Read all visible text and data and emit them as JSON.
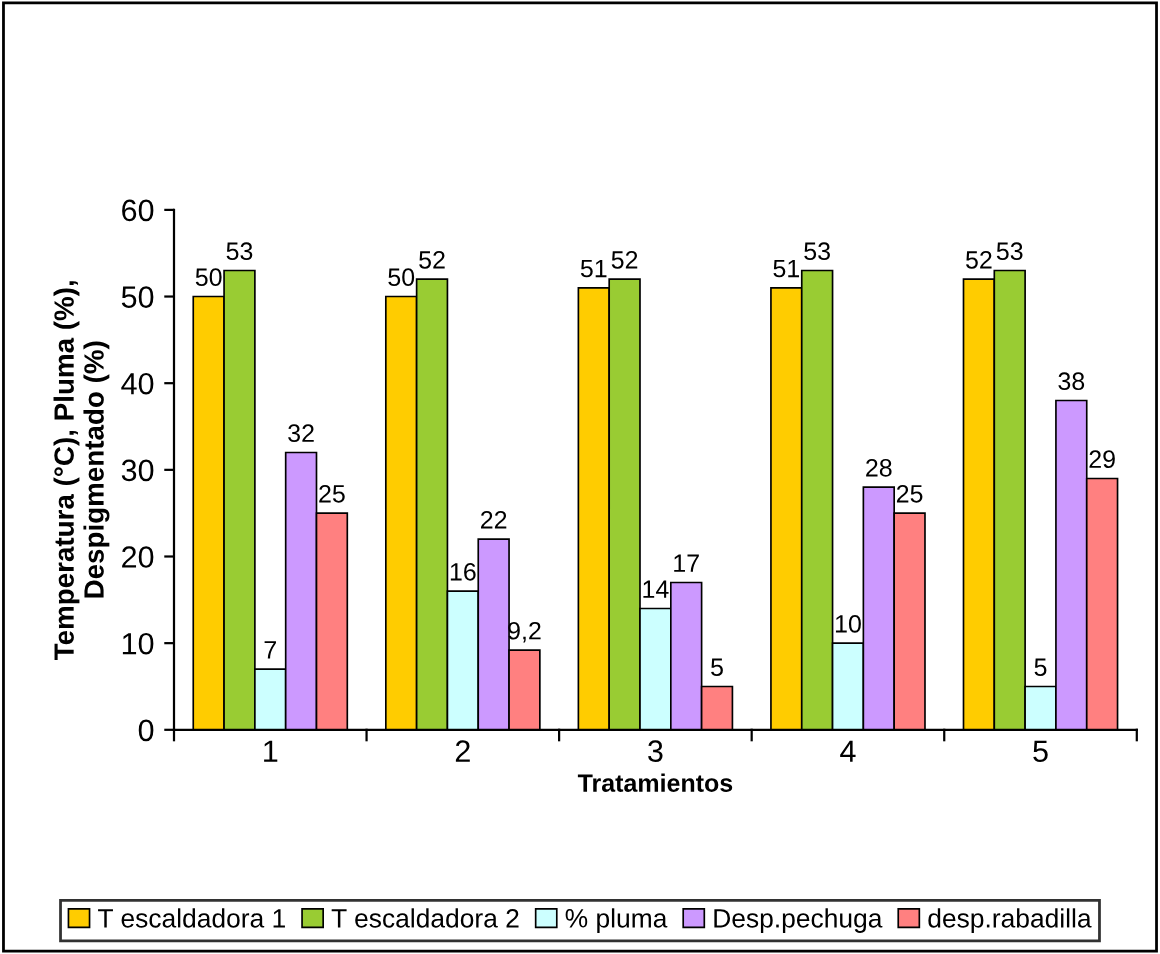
{
  "chart_data": {
    "type": "bar",
    "xlabel": "Tratamientos",
    "ylabel": "Temperatura (°C), Pluma (%),\nDespigmentado (%)",
    "categories": [
      "1",
      "2",
      "3",
      "4",
      "5"
    ],
    "series": [
      {
        "name": "T escaldadora 1",
        "color": "#ffcc00",
        "values": [
          50,
          50,
          51,
          51,
          52
        ],
        "value_labels": [
          "50",
          "50",
          "51",
          "51",
          "52"
        ]
      },
      {
        "name": "T escaldadora 2",
        "color": "#99cc33",
        "values": [
          53,
          52,
          52,
          53,
          53
        ],
        "value_labels": [
          "53",
          "52",
          "52",
          "53",
          "53"
        ]
      },
      {
        "name": "% pluma",
        "color": "#ccffff",
        "values": [
          7,
          16,
          14,
          10,
          5
        ],
        "value_labels": [
          "7",
          "16",
          "14",
          "10",
          "5"
        ]
      },
      {
        "name": "Desp.pechuga",
        "color": "#cc99ff",
        "values": [
          32,
          22,
          17,
          28,
          38
        ],
        "value_labels": [
          "32",
          "22",
          "17",
          "28",
          "38"
        ]
      },
      {
        "name": "desp.rabadilla",
        "color": "#ff8080",
        "values": [
          25,
          9.2,
          5,
          25,
          29
        ],
        "value_labels": [
          "25",
          "9,2",
          "5",
          "25",
          "29"
        ]
      }
    ],
    "ylim": [
      0,
      60
    ],
    "yticks": [
      0,
      10,
      20,
      30,
      40,
      50,
      60
    ],
    "grid": false,
    "legend": "bottom"
  }
}
